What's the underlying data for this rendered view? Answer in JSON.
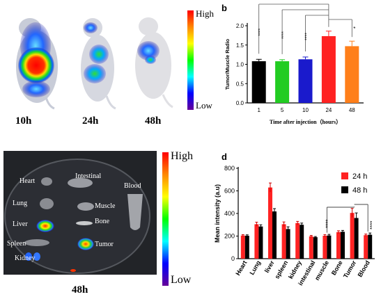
{
  "panel_a": {
    "time_labels": [
      "10h",
      "24h",
      "48h"
    ],
    "scale_high": "High",
    "scale_low": "Low"
  },
  "panel_c": {
    "organ_labels": [
      "Heart",
      "Intestinal",
      "Blood",
      "Lung",
      "Muscle",
      "Liver",
      "Bone",
      "Spleen",
      "Tumor",
      "Kidney"
    ],
    "time_label": "48h",
    "scale_high": "High",
    "scale_low": "Low"
  },
  "chart_data": [
    {
      "panel": "b",
      "type": "bar",
      "categories": [
        "1",
        "5",
        "10",
        "24",
        "48"
      ],
      "values": [
        1.08,
        1.08,
        1.13,
        1.73,
        1.47
      ],
      "errors": [
        0.05,
        0.04,
        0.06,
        0.13,
        0.13
      ],
      "colors": [
        "#000000",
        "#22cc22",
        "#1a1acc",
        "#ff2222",
        "#ff7f1a"
      ],
      "xlabel": "Time after injection（hours）",
      "ylabel": "Tumor/Muscle Radio",
      "ylim": [
        0,
        2.0
      ],
      "yticks": [
        "0.0",
        "0.5",
        "1.0",
        "1.5",
        "2.0"
      ],
      "significance": [
        "****",
        "****",
        "****",
        "*"
      ]
    },
    {
      "panel": "d",
      "type": "bar",
      "categories": [
        "Heart",
        "Lung",
        "liver",
        "spleen",
        "kidney",
        "intestinal",
        "muscle",
        "Bone",
        "Tumor",
        "Blood"
      ],
      "series": [
        {
          "name": "24 h",
          "color": "#ff2222",
          "values": [
            205,
            305,
            630,
            305,
            315,
            198,
            203,
            235,
            405,
            208
          ],
          "errors": [
            8,
            18,
            40,
            20,
            15,
            8,
            10,
            12,
            40,
            10
          ]
        },
        {
          "name": "48 h",
          "color": "#000000",
          "values": [
            203,
            285,
            418,
            262,
            300,
            190,
            205,
            238,
            360,
            212
          ],
          "errors": [
            8,
            15,
            25,
            20,
            15,
            6,
            10,
            12,
            45,
            15
          ]
        }
      ],
      "ylabel": "Mean intensity (a.u)",
      "ylim": [
        0,
        800
      ],
      "yticks": [
        "0",
        "200",
        "400",
        "600",
        "800"
      ],
      "significance": [
        "****",
        "****"
      ],
      "legend_position": "top-right"
    }
  ],
  "panel_letters": {
    "b": "b",
    "d": "d"
  }
}
